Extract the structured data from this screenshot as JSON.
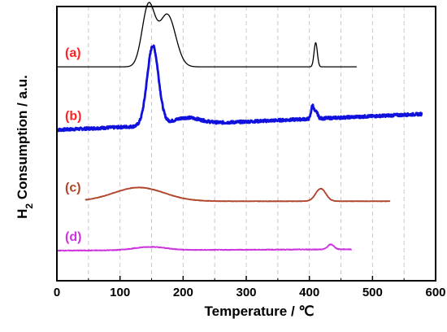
{
  "chart_data": {
    "type": "line",
    "title": "",
    "xlabel": "Temperature / ℃",
    "ylabel_parts": {
      "before": "H",
      "sub": "2",
      "after": " Consumption / a.u."
    },
    "xlim": [
      0,
      600
    ],
    "xticks": [
      "0",
      "100",
      "200",
      "300",
      "400",
      "500",
      "600"
    ],
    "ylim": [
      0,
      5
    ],
    "grid": "vertical dashed",
    "series": [
      {
        "name": "(a)",
        "color": "#000000",
        "label_color": "#ff2222",
        "stroke_width": 1.3,
        "noise": 0,
        "baseline": 3.9,
        "x_range": [
          0,
          475
        ],
        "peaks": [
          {
            "center": 145,
            "height": 1.1,
            "width": 10
          },
          {
            "center": 175,
            "height": 0.95,
            "width": 13
          },
          {
            "center": 410,
            "height": 0.44,
            "width": 2.6
          }
        ]
      },
      {
        "name": "(b)",
        "color": "#1111dd",
        "label_color": "#ff2222",
        "stroke_width": 2.8,
        "noise": 0.025,
        "baseline": 2.75,
        "slope": 0.0005,
        "x_range": [
          0,
          578
        ],
        "peaks": [
          {
            "center": 152,
            "height": 1.45,
            "width": 9
          },
          {
            "center": 205,
            "height": 0.12,
            "width": 22
          },
          {
            "center": 405,
            "height": 0.24,
            "width": 2.2
          },
          {
            "center": 411,
            "height": 0.12,
            "width": 2.5
          }
        ]
      },
      {
        "name": "(c)",
        "color": "#b0442a",
        "label_color": "#b0442a",
        "stroke_width": 1.8,
        "noise": 0.004,
        "baseline": 1.45,
        "x_range": [
          45,
          528
        ],
        "peaks": [
          {
            "center": 130,
            "height": 0.25,
            "width": 40
          },
          {
            "center": 418,
            "height": 0.23,
            "width": 8
          }
        ]
      },
      {
        "name": "(d)",
        "color": "#cc33dd",
        "label_color": "#cc33dd",
        "stroke_width": 1.8,
        "noise": 0.006,
        "baseline": 0.55,
        "slope": 5e-05,
        "x_range": [
          0,
          467
        ],
        "peaks": [
          {
            "center": 148,
            "height": 0.06,
            "width": 25
          },
          {
            "center": 434,
            "height": 0.09,
            "width": 5
          }
        ]
      }
    ]
  }
}
